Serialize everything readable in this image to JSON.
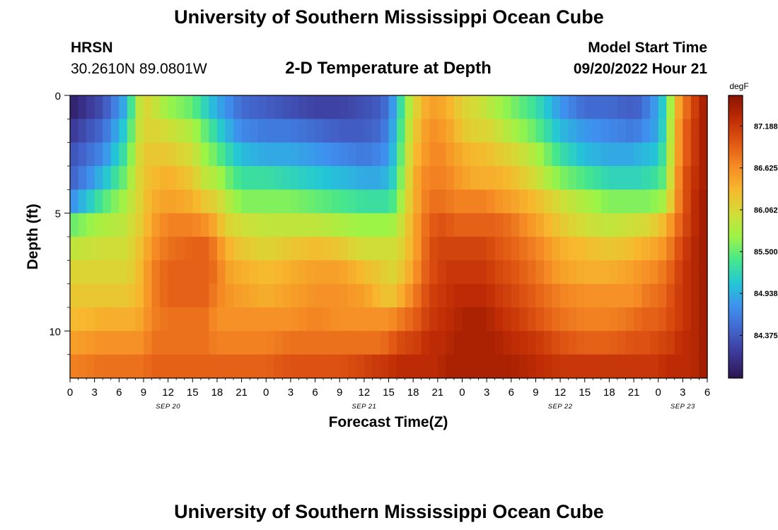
{
  "page": {
    "top_title": "University of Southern Mississippi Ocean Cube",
    "bottom_title": "University of Southern Mississippi Ocean Cube",
    "station_name": "HRSN",
    "station_coords": "30.2610N  89.0801W",
    "plot_title": "2-D Temperature at Depth",
    "model_start_label": "Model Start Time",
    "model_start_value": "09/20/2022 Hour 21"
  },
  "colors": {
    "colormap": [
      "#2b1550",
      "#3c3795",
      "#4262c8",
      "#3f8fee",
      "#24c6d7",
      "#45e68d",
      "#9cf446",
      "#d3dc37",
      "#f7b82e",
      "#f58a24",
      "#e05613",
      "#bf2c05",
      "#8a1200"
    ]
  },
  "chart_data": {
    "type": "heatmap",
    "title": "2-D Temperature at Depth",
    "xlabel": "Forecast Time(Z)",
    "ylabel": "Depth (ft)",
    "x_start_hour": 0,
    "x_end_hour": 78,
    "x_tick_step_hours": 3,
    "x_tick_labels": [
      "0",
      "3",
      "6",
      "9",
      "12",
      "15",
      "18",
      "21",
      "0",
      "3",
      "6",
      "9",
      "12",
      "15",
      "18",
      "21",
      "0",
      "3",
      "6",
      "9",
      "12",
      "15",
      "18",
      "21",
      "0",
      "3",
      "6"
    ],
    "date_labels": [
      {
        "label": "SEP 20",
        "hour": 12
      },
      {
        "label": "SEP 21",
        "hour": 36
      },
      {
        "label": "SEP 22",
        "hour": 60
      },
      {
        "label": "SEP 23",
        "hour": 75
      }
    ],
    "y_ticks": [
      0,
      5,
      10
    ],
    "y_minor_ticks": [
      1,
      2,
      3,
      4,
      6,
      7,
      8,
      9,
      11
    ],
    "ylim": [
      0,
      12
    ],
    "depth_layers": [
      0.5,
      1.5,
      2.5,
      3.5,
      4.5,
      5.5,
      6.5,
      7.5,
      8.5,
      9.5,
      10.5,
      11.5
    ],
    "colorbar": {
      "unit": "degF",
      "min": 83.8,
      "max": 87.6,
      "tick_values": [
        84.375,
        84.938,
        85.5,
        86.062,
        86.625,
        87.188
      ],
      "tick_labels": [
        "84.375",
        "84.938",
        "85.500",
        "86.062",
        "86.625",
        "87.188"
      ]
    },
    "profile_hours": [
      0,
      4,
      7,
      8,
      9,
      10,
      12,
      15,
      16.5,
      18,
      19,
      21,
      24,
      27,
      30,
      33,
      36,
      38,
      39,
      40,
      41,
      42,
      43,
      44,
      45,
      46,
      47,
      48,
      50,
      51,
      52,
      54,
      57,
      60,
      63,
      66,
      69,
      70,
      71,
      72,
      73,
      74,
      75,
      76,
      77,
      78
    ],
    "profiles": [
      [
        83.9,
        84.1,
        84.3,
        84.4,
        84.7,
        85.5,
        85.9,
        86.1,
        86.2,
        86.3,
        86.5,
        86.7
      ],
      [
        84.3,
        84.5,
        84.7,
        85.0,
        85.4,
        85.8,
        86.0,
        86.1,
        86.2,
        86.4,
        86.6,
        86.8
      ],
      [
        85.0,
        85.2,
        85.4,
        85.6,
        85.8,
        85.9,
        86.0,
        86.1,
        86.2,
        86.4,
        86.6,
        86.8
      ],
      [
        85.7,
        85.8,
        85.9,
        86.0,
        86.0,
        86.1,
        86.2,
        86.2,
        86.3,
        86.4,
        86.6,
        86.8
      ],
      [
        86.1,
        86.1,
        86.2,
        86.2,
        86.2,
        86.2,
        86.3,
        86.4,
        86.4,
        86.5,
        86.6,
        86.8
      ],
      [
        86.0,
        86.1,
        86.2,
        86.3,
        86.4,
        86.5,
        86.6,
        86.7,
        86.7,
        86.7,
        86.8,
        86.9
      ],
      [
        85.7,
        86.0,
        86.2,
        86.4,
        86.5,
        86.7,
        86.8,
        86.9,
        86.9,
        86.8,
        86.8,
        86.9
      ],
      [
        85.5,
        85.8,
        86.0,
        86.2,
        86.4,
        86.7,
        86.9,
        86.9,
        86.9,
        86.8,
        86.8,
        86.9
      ],
      [
        85.2,
        85.5,
        85.7,
        85.9,
        86.2,
        86.6,
        86.9,
        86.9,
        86.9,
        86.8,
        86.8,
        86.9
      ],
      [
        84.9,
        85.2,
        85.5,
        85.8,
        86.1,
        86.4,
        86.7,
        86.8,
        86.7,
        86.6,
        86.7,
        86.9
      ],
      [
        84.8,
        85.0,
        85.3,
        85.6,
        85.9,
        86.1,
        86.4,
        86.5,
        86.6,
        86.6,
        86.7,
        86.9
      ],
      [
        84.5,
        84.7,
        85.0,
        85.3,
        85.6,
        86.0,
        86.2,
        86.4,
        86.5,
        86.6,
        86.7,
        86.9
      ],
      [
        84.4,
        84.6,
        84.9,
        85.3,
        85.6,
        85.9,
        86.1,
        86.3,
        86.4,
        86.6,
        86.7,
        86.9
      ],
      [
        84.3,
        84.6,
        84.9,
        85.2,
        85.6,
        85.9,
        86.2,
        86.4,
        86.5,
        86.6,
        86.8,
        87.0
      ],
      [
        84.2,
        84.5,
        84.8,
        85.1,
        85.5,
        85.9,
        86.3,
        86.5,
        86.6,
        86.7,
        86.8,
        87.0
      ],
      [
        84.2,
        84.4,
        84.7,
        85.0,
        85.4,
        85.8,
        86.2,
        86.5,
        86.6,
        86.6,
        86.8,
        87.0
      ],
      [
        84.3,
        84.4,
        84.6,
        84.9,
        85.3,
        85.7,
        86.0,
        86.3,
        86.5,
        86.6,
        86.8,
        87.1
      ],
      [
        84.4,
        84.5,
        84.7,
        84.9,
        85.3,
        85.7,
        86.0,
        86.2,
        86.3,
        86.6,
        86.8,
        87.2
      ],
      [
        84.6,
        84.7,
        84.8,
        85.0,
        85.3,
        85.7,
        86.0,
        86.1,
        86.2,
        86.6,
        86.9,
        87.2
      ],
      [
        85.0,
        85.1,
        85.2,
        85.3,
        85.5,
        85.8,
        86.0,
        86.1,
        86.3,
        86.7,
        87.0,
        87.3
      ],
      [
        85.6,
        85.7,
        85.8,
        85.9,
        86.0,
        86.1,
        86.2,
        86.3,
        86.5,
        86.8,
        87.1,
        87.3
      ],
      [
        86.0,
        86.1,
        86.2,
        86.3,
        86.3,
        86.4,
        86.4,
        86.5,
        86.7,
        86.9,
        87.1,
        87.3
      ],
      [
        86.3,
        86.4,
        86.5,
        86.6,
        86.6,
        86.7,
        86.7,
        86.8,
        86.9,
        87.0,
        87.2,
        87.3
      ],
      [
        86.5,
        86.6,
        86.6,
        86.7,
        86.8,
        86.9,
        87.0,
        87.0,
        87.1,
        87.2,
        87.3,
        87.3
      ],
      [
        86.5,
        86.6,
        86.7,
        86.7,
        86.8,
        87.0,
        87.1,
        87.1,
        87.2,
        87.2,
        87.3,
        87.3
      ],
      [
        86.4,
        86.5,
        86.6,
        86.7,
        86.8,
        87.0,
        87.1,
        87.2,
        87.2,
        87.3,
        87.3,
        87.4
      ],
      [
        86.3,
        86.4,
        86.5,
        86.6,
        86.7,
        86.9,
        87.1,
        87.2,
        87.3,
        87.3,
        87.4,
        87.4
      ],
      [
        86.1,
        86.2,
        86.4,
        86.5,
        86.7,
        86.9,
        87.1,
        87.2,
        87.3,
        87.4,
        87.4,
        87.4
      ],
      [
        86.0,
        86.1,
        86.3,
        86.4,
        86.7,
        86.9,
        87.1,
        87.2,
        87.3,
        87.4,
        87.4,
        87.4
      ],
      [
        85.9,
        86.1,
        86.3,
        86.4,
        86.7,
        86.9,
        87.1,
        87.2,
        87.3,
        87.4,
        87.4,
        87.4
      ],
      [
        85.8,
        86.0,
        86.2,
        86.4,
        86.6,
        86.9,
        87.0,
        87.1,
        87.2,
        87.3,
        87.4,
        87.4
      ],
      [
        85.6,
        85.8,
        86.1,
        86.3,
        86.5,
        86.8,
        86.9,
        87.0,
        87.1,
        87.2,
        87.3,
        87.4
      ],
      [
        85.3,
        85.5,
        85.8,
        86.0,
        86.3,
        86.5,
        86.7,
        86.8,
        86.9,
        87.0,
        87.2,
        87.3
      ],
      [
        84.8,
        85.0,
        85.3,
        85.6,
        86.0,
        86.2,
        86.4,
        86.5,
        86.7,
        86.8,
        87.0,
        87.2
      ],
      [
        84.5,
        84.8,
        85.0,
        85.4,
        85.8,
        86.0,
        86.3,
        86.4,
        86.6,
        86.7,
        86.9,
        87.2
      ],
      [
        84.5,
        84.7,
        84.9,
        85.2,
        85.6,
        85.9,
        86.2,
        86.4,
        86.6,
        86.7,
        86.9,
        87.2
      ],
      [
        84.4,
        84.6,
        84.9,
        85.2,
        85.6,
        86.0,
        86.3,
        86.5,
        86.6,
        86.8,
        87.0,
        87.2
      ],
      [
        84.5,
        84.7,
        85.0,
        85.2,
        85.6,
        86.0,
        86.4,
        86.6,
        86.7,
        86.9,
        87.0,
        87.2
      ],
      [
        84.7,
        84.8,
        85.0,
        85.3,
        85.6,
        86.1,
        86.4,
        86.6,
        86.8,
        86.9,
        87.0,
        87.2
      ],
      [
        84.9,
        84.9,
        85.1,
        85.3,
        85.7,
        86.2,
        86.5,
        86.7,
        86.8,
        86.9,
        87.1,
        87.2
      ],
      [
        85.3,
        85.4,
        85.5,
        85.6,
        85.8,
        86.4,
        86.6,
        86.8,
        86.9,
        87.0,
        87.1,
        87.3
      ],
      [
        86.2,
        86.3,
        86.3,
        86.4,
        86.5,
        86.7,
        86.9,
        87.0,
        87.1,
        87.1,
        87.2,
        87.3
      ],
      [
        86.7,
        86.8,
        86.8,
        86.9,
        86.9,
        87.0,
        87.1,
        87.2,
        87.2,
        87.2,
        87.3,
        87.3
      ],
      [
        87.0,
        87.1,
        87.1,
        87.2,
        87.2,
        87.2,
        87.3,
        87.3,
        87.3,
        87.3,
        87.3,
        87.3
      ],
      [
        87.3,
        87.3,
        87.3,
        87.3,
        87.4,
        87.4,
        87.4,
        87.4,
        87.4,
        87.4,
        87.4,
        87.4
      ],
      [
        87.5,
        87.5,
        87.5,
        87.5,
        87.5,
        87.5,
        87.5,
        87.5,
        87.5,
        87.5,
        87.5,
        87.5
      ]
    ]
  }
}
